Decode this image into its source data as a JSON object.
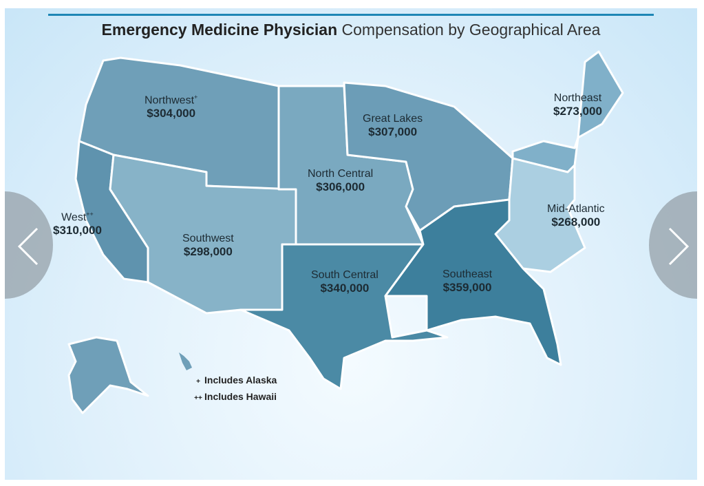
{
  "title": {
    "bold": "Emergency Medicine Physician",
    "rest": "Compensation by Geographical Area"
  },
  "regions": [
    {
      "name": "Northwest",
      "mark": "+",
      "value": "$304,000",
      "color": "#6f9fb8"
    },
    {
      "name": "West",
      "mark": "++",
      "value": "$310,000",
      "color": "#5f93ae"
    },
    {
      "name": "Southwest",
      "mark": "",
      "value": "$298,000",
      "color": "#87b3c8"
    },
    {
      "name": "North Central",
      "mark": "",
      "value": "$306,000",
      "color": "#7aa9c0"
    },
    {
      "name": "Great Lakes",
      "mark": "",
      "value": "$307,000",
      "color": "#6c9db7"
    },
    {
      "name": "Northeast",
      "mark": "",
      "value": "$273,000",
      "color": "#80b0c9"
    },
    {
      "name": "Mid-Atlantic",
      "mark": "",
      "value": "$268,000",
      "color": "#abcfe1"
    },
    {
      "name": "South Central",
      "mark": "",
      "value": "$340,000",
      "color": "#4b8aa5"
    },
    {
      "name": "Southeast",
      "mark": "",
      "value": "$359,000",
      "color": "#3d7f9c"
    }
  ],
  "legend": [
    {
      "mark": "+",
      "text": "Includes Alaska"
    },
    {
      "mark": "++",
      "text": "Includes Hawaii"
    }
  ],
  "nav": {
    "prev_icon": "chevron-left-icon",
    "next_icon": "chevron-right-icon"
  }
}
